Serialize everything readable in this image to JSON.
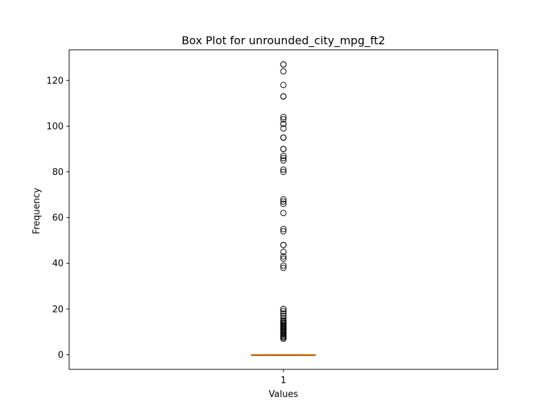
{
  "chart_data": {
    "type": "box",
    "title": "Box Plot for unrounded_city_mpg_ft2",
    "xlabel": "Values",
    "ylabel": "Frequency",
    "categories": [
      "1"
    ],
    "ylim": [
      -6.4,
      133.4
    ],
    "yticks": [
      0,
      20,
      40,
      60,
      80,
      100,
      120
    ],
    "grid": false,
    "box": {
      "q1": 0,
      "median": 0,
      "q3": 0,
      "whisker_low": 0,
      "whisker_high": 0
    },
    "outliers": [
      127,
      127,
      124,
      118,
      113,
      113,
      104,
      103,
      101,
      101,
      99,
      95,
      95,
      95,
      90,
      90,
      87,
      86,
      85,
      81,
      80,
      68,
      67,
      66,
      62,
      55,
      54,
      48,
      48,
      45,
      43,
      42,
      39,
      38,
      20,
      20,
      19,
      18,
      17,
      16,
      15,
      14.5,
      14,
      13.5,
      13,
      12.5,
      12,
      11.5,
      11,
      10.5,
      10,
      9.5,
      9,
      8.5,
      8,
      7.5,
      7
    ],
    "colors": {
      "median": "#ff7f0e",
      "box": "#000000",
      "outlier": "#000000"
    }
  }
}
